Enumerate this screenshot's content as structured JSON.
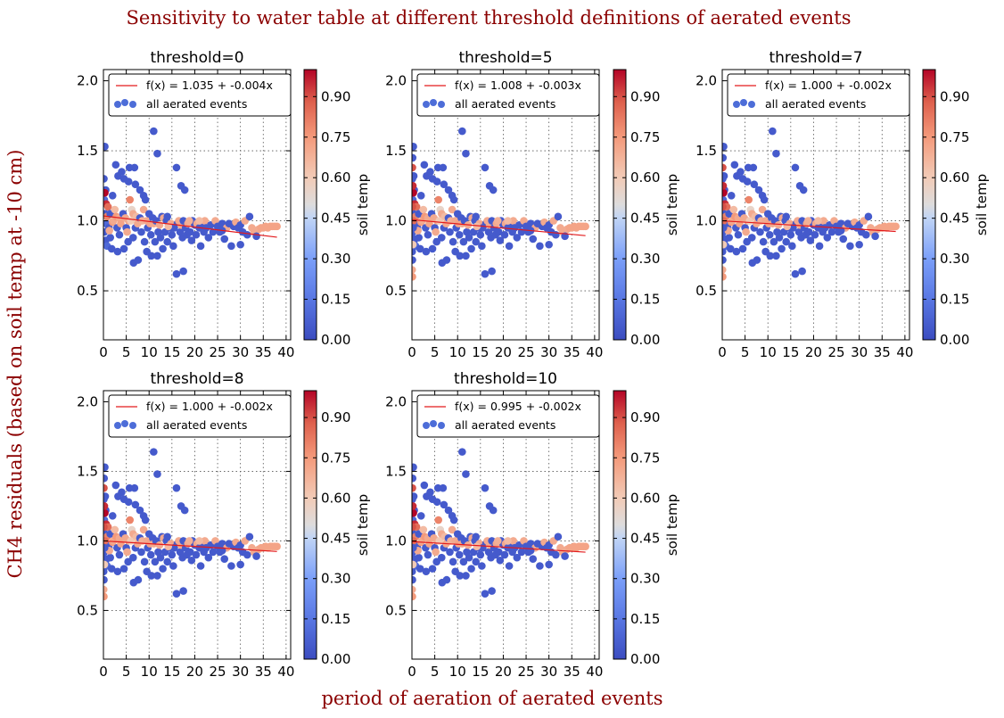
{
  "figure": {
    "suptitle": "Sensitivity to water table at different threshold definitions of aerated events",
    "xlabel": "period of aeration of aerated events",
    "ylabel": "CH4 residuals (based on soil temp at -10 cm)"
  },
  "colors": {
    "title": "#8b0000",
    "fit_line": "#e31a1c",
    "cold": "#3b4cc0",
    "warm": "#b40426"
  },
  "chart_data": [
    {
      "type": "scatter",
      "title": "threshold=0",
      "xlim": [
        0,
        41
      ],
      "ylim": [
        0.15,
        2.08
      ],
      "xticks": [
        0,
        5,
        10,
        15,
        20,
        25,
        30,
        35,
        40
      ],
      "yticks": [
        0.5,
        1.0,
        1.5,
        2.0
      ],
      "fit": {
        "label": "f(x) = 1.035 + -0.004x",
        "intercept": 1.035,
        "slope": -0.004,
        "x_range": [
          0,
          38
        ]
      },
      "scatter_label": "all aerated events",
      "colorbar": {
        "label": "soil temp",
        "ticks": [
          "0.00",
          "0.15",
          "0.30",
          "0.45",
          "0.60",
          "0.75",
          "0.90"
        ]
      },
      "grid": true,
      "legend": "top"
    },
    {
      "type": "scatter",
      "title": "threshold=5",
      "xlim": [
        0,
        41
      ],
      "ylim": [
        0.15,
        2.08
      ],
      "xticks": [
        0,
        5,
        10,
        15,
        20,
        25,
        30,
        35,
        40
      ],
      "yticks": [
        0.5,
        1.0,
        1.5,
        2.0
      ],
      "fit": {
        "label": "f(x) = 1.008 + -0.003x",
        "intercept": 1.008,
        "slope": -0.003,
        "x_range": [
          0,
          38
        ]
      },
      "scatter_label": "all aerated events",
      "colorbar": {
        "label": "soil temp",
        "ticks": [
          "0.00",
          "0.15",
          "0.30",
          "0.45",
          "0.60",
          "0.75",
          "0.90"
        ]
      },
      "grid": true,
      "legend": "top"
    },
    {
      "type": "scatter",
      "title": "threshold=7",
      "xlim": [
        0,
        41
      ],
      "ylim": [
        0.15,
        2.08
      ],
      "xticks": [
        0,
        5,
        10,
        15,
        20,
        25,
        30,
        35,
        40
      ],
      "yticks": [
        0.5,
        1.0,
        1.5,
        2.0
      ],
      "fit": {
        "label": "f(x) = 1.000 + -0.002x",
        "intercept": 1.0,
        "slope": -0.002,
        "x_range": [
          0,
          38
        ]
      },
      "scatter_label": "all aerated events",
      "colorbar": {
        "label": "soil temp",
        "ticks": [
          "0.00",
          "0.15",
          "0.30",
          "0.45",
          "0.60",
          "0.75",
          "0.90"
        ]
      },
      "grid": true,
      "legend": "top"
    },
    {
      "type": "scatter",
      "title": "threshold=8",
      "xlim": [
        0,
        41
      ],
      "ylim": [
        0.15,
        2.08
      ],
      "xticks": [
        0,
        5,
        10,
        15,
        20,
        25,
        30,
        35,
        40
      ],
      "yticks": [
        0.5,
        1.0,
        1.5,
        2.0
      ],
      "fit": {
        "label": "f(x) = 1.000 + -0.002x",
        "intercept": 1.0,
        "slope": -0.002,
        "x_range": [
          0,
          38
        ]
      },
      "scatter_label": "all aerated events",
      "colorbar": {
        "label": "soil temp",
        "ticks": [
          "0.00",
          "0.15",
          "0.30",
          "0.45",
          "0.60",
          "0.75",
          "0.90"
        ]
      },
      "grid": true,
      "legend": "top"
    },
    {
      "type": "scatter",
      "title": "threshold=10",
      "xlim": [
        0,
        41
      ],
      "ylim": [
        0.15,
        2.08
      ],
      "xticks": [
        0,
        5,
        10,
        15,
        20,
        25,
        30,
        35,
        40
      ],
      "yticks": [
        0.5,
        1.0,
        1.5,
        2.0
      ],
      "fit": {
        "label": "f(x) = 0.995 + -0.002x",
        "intercept": 0.995,
        "slope": -0.002,
        "x_range": [
          0,
          38
        ]
      },
      "scatter_label": "all aerated events",
      "colorbar": {
        "label": "soil temp",
        "ticks": [
          "0.00",
          "0.15",
          "0.30",
          "0.45",
          "0.60",
          "0.75",
          "0.90"
        ]
      },
      "grid": true,
      "legend": "top"
    }
  ],
  "scatter_points": {
    "base": [
      [
        0.1,
        1.3,
        0.05
      ],
      [
        0.3,
        1.53,
        0.05
      ],
      [
        0.5,
        1.22,
        0.05
      ],
      [
        0.2,
        1.15,
        0.1
      ],
      [
        0.4,
        1.05,
        0.05
      ],
      [
        0.6,
        0.98,
        0.1
      ],
      [
        0.2,
        0.92,
        0.05
      ],
      [
        0.5,
        0.86,
        0.05
      ],
      [
        0.8,
        0.82,
        0.1
      ],
      [
        0.3,
        1.2,
        1.0
      ],
      [
        0.6,
        1.12,
        0.95
      ],
      [
        1.0,
        1.1,
        0.85
      ],
      [
        0.8,
        1.03,
        0.8
      ],
      [
        1.2,
        0.95,
        0.05
      ],
      [
        1.5,
        0.88,
        0.05
      ],
      [
        1.8,
        0.8,
        0.05
      ],
      [
        1.5,
        1.05,
        0.05
      ],
      [
        2.0,
        1.18,
        0.05
      ],
      [
        2.0,
        0.99,
        0.75
      ],
      [
        2.2,
        1.0,
        0.7
      ],
      [
        1.3,
        0.93,
        0.7
      ],
      [
        2.5,
        1.08,
        0.65
      ],
      [
        2.8,
        1.03,
        0.75
      ],
      [
        3.0,
        0.95,
        0.05
      ],
      [
        3.1,
        0.78,
        0.05
      ],
      [
        3.5,
        0.9,
        0.05
      ],
      [
        3.5,
        1.02,
        0.7
      ],
      [
        3.8,
        0.98,
        0.72
      ],
      [
        2.7,
        1.4,
        0.05
      ],
      [
        3.2,
        1.32,
        0.05
      ],
      [
        4.0,
        1.35,
        0.05
      ],
      [
        4.5,
        1.3,
        0.05
      ],
      [
        4.3,
        1.05,
        0.05
      ],
      [
        4.8,
        1.02,
        0.7
      ],
      [
        4.5,
        0.8,
        0.05
      ],
      [
        5.0,
        0.95,
        0.05
      ],
      [
        5.2,
        0.92,
        0.7
      ],
      [
        5.5,
        1.0,
        0.7
      ],
      [
        5.8,
        1.15,
        0.8
      ],
      [
        5.4,
        0.85,
        0.05
      ],
      [
        5.5,
        1.28,
        0.05
      ],
      [
        5.7,
        1.38,
        0.05
      ],
      [
        6.0,
        1.0,
        0.6
      ],
      [
        6.2,
        1.08,
        0.55
      ],
      [
        6.5,
        1.05,
        0.7
      ],
      [
        6.5,
        0.88,
        0.05
      ],
      [
        6.6,
        0.7,
        0.05
      ],
      [
        6.8,
        1.38,
        0.05
      ],
      [
        7.0,
        1.26,
        0.05
      ],
      [
        7.0,
        0.95,
        0.05
      ],
      [
        7.2,
        1.03,
        0.65
      ],
      [
        7.5,
        0.98,
        0.7
      ],
      [
        7.6,
        0.72,
        0.05
      ],
      [
        8.0,
        1.22,
        0.05
      ],
      [
        8.0,
        1.02,
        0.05
      ],
      [
        8.3,
        0.92,
        0.05
      ],
      [
        8.5,
        1.0,
        0.68
      ],
      [
        8.8,
        1.18,
        0.05
      ],
      [
        8.8,
        1.08,
        0.7
      ],
      [
        9.0,
        0.85,
        0.05
      ],
      [
        9.2,
        1.15,
        0.05
      ],
      [
        9.5,
        1.0,
        0.7
      ],
      [
        9.7,
        0.95,
        0.05
      ],
      [
        9.5,
        0.78,
        0.05
      ],
      [
        10.0,
        1.05,
        0.05
      ],
      [
        10.2,
        0.98,
        0.72
      ],
      [
        10.4,
        0.9,
        0.05
      ],
      [
        10.5,
        0.75,
        0.05
      ],
      [
        10.8,
        1.02,
        0.05
      ],
      [
        11.0,
        1.64,
        0.05
      ],
      [
        11.0,
        0.98,
        0.7
      ],
      [
        11.3,
        0.85,
        0.05
      ],
      [
        11.5,
        1.0,
        0.05
      ],
      [
        11.8,
        1.48,
        0.05
      ],
      [
        11.8,
        0.75,
        0.05
      ],
      [
        12.0,
        0.92,
        0.05
      ],
      [
        12.3,
        0.97,
        0.7
      ],
      [
        12.5,
        0.88,
        0.05
      ],
      [
        12.8,
        1.03,
        0.05
      ],
      [
        13.0,
        0.8,
        0.05
      ],
      [
        13.2,
        1.02,
        0.7
      ],
      [
        13.5,
        0.92,
        0.05
      ],
      [
        13.8,
        1.0,
        0.05
      ],
      [
        14.0,
        0.85,
        0.05
      ],
      [
        14.0,
        1.03,
        0.05
      ],
      [
        14.5,
        0.95,
        0.05
      ],
      [
        14.8,
        0.98,
        0.7
      ],
      [
        15.0,
        0.9,
        0.05
      ],
      [
        15.3,
        0.82,
        0.05
      ],
      [
        15.5,
        0.95,
        0.05
      ],
      [
        16.0,
        1.38,
        0.05
      ],
      [
        16.0,
        0.62,
        0.05
      ],
      [
        16.2,
        0.98,
        0.05
      ],
      [
        16.5,
        1.0,
        0.7
      ],
      [
        16.8,
        0.92,
        0.05
      ],
      [
        17.0,
        1.25,
        0.05
      ],
      [
        17.0,
        0.97,
        0.7
      ],
      [
        17.3,
        0.88,
        0.05
      ],
      [
        17.5,
        1.0,
        0.05
      ],
      [
        17.8,
        1.22,
        0.05
      ],
      [
        17.5,
        0.64,
        0.05
      ],
      [
        18.0,
        0.95,
        0.05
      ],
      [
        18.3,
        0.9,
        0.05
      ],
      [
        18.5,
        0.98,
        0.7
      ],
      [
        19.0,
        0.92,
        0.05
      ],
      [
        19.3,
        0.86,
        0.05
      ],
      [
        19.5,
        1.0,
        0.05
      ],
      [
        20.0,
        0.97,
        0.05
      ],
      [
        20.3,
        0.9,
        0.05
      ],
      [
        20.5,
        0.98,
        0.7
      ],
      [
        21.0,
        0.95,
        0.05
      ],
      [
        21.3,
        0.82,
        0.05
      ],
      [
        21.5,
        0.98,
        0.05
      ],
      [
        22.0,
        0.92,
        0.05
      ],
      [
        22.2,
        1.0,
        0.7
      ],
      [
        22.5,
        0.95,
        0.05
      ],
      [
        23.0,
        0.88,
        0.05
      ],
      [
        23.5,
        0.97,
        0.05
      ],
      [
        24.0,
        0.92,
        0.05
      ],
      [
        24.5,
        1.0,
        0.7
      ],
      [
        25.0,
        0.96,
        0.05
      ],
      [
        25.5,
        0.92,
        0.05
      ],
      [
        26.0,
        0.98,
        0.05
      ],
      [
        26.5,
        0.87,
        0.05
      ],
      [
        27.0,
        0.95,
        0.7
      ],
      [
        27.5,
        0.98,
        0.05
      ],
      [
        28.0,
        0.82,
        0.05
      ],
      [
        28.5,
        0.96,
        0.05
      ],
      [
        29.0,
        0.99,
        0.7
      ],
      [
        29.5,
        0.95,
        0.05
      ],
      [
        30.0,
        0.97,
        0.05
      ],
      [
        30.5,
        0.92,
        0.05
      ],
      [
        31.0,
        1.0,
        0.7
      ],
      [
        31.5,
        0.9,
        0.05
      ],
      [
        32.0,
        1.03,
        0.05
      ],
      [
        32.5,
        0.95,
        0.7
      ],
      [
        33.0,
        0.92,
        0.7
      ],
      [
        33.5,
        0.93,
        0.7
      ],
      [
        34.0,
        0.94,
        0.7
      ],
      [
        34.5,
        0.95,
        0.72
      ],
      [
        35.0,
        0.95,
        0.72
      ],
      [
        35.5,
        0.96,
        0.72
      ],
      [
        36.0,
        0.95,
        0.72
      ],
      [
        36.5,
        0.96,
        0.72
      ],
      [
        37.0,
        0.96,
        0.72
      ],
      [
        37.5,
        0.96,
        0.72
      ],
      [
        38.0,
        0.96,
        0.72
      ],
      [
        33.5,
        0.89,
        0.05
      ],
      [
        30.0,
        0.83,
        0.05
      ],
      [
        26.0,
        0.93,
        0.05
      ],
      [
        21.0,
        1.0,
        0.65
      ],
      [
        18.8,
        1.0,
        0.68
      ],
      [
        14.2,
        0.96,
        0.65
      ]
    ],
    "extra_left": [
      [
        0.05,
        0.78,
        0.05
      ],
      [
        0.1,
        0.72,
        0.05
      ],
      [
        0.05,
        0.65,
        0.7
      ],
      [
        0.1,
        0.6,
        0.75
      ],
      [
        0.15,
        1.45,
        0.05
      ],
      [
        0.1,
        1.38,
        0.9
      ],
      [
        0.2,
        1.25,
        0.95
      ],
      [
        0.3,
        1.0,
        0.85
      ],
      [
        0.05,
        0.88,
        0.05
      ],
      [
        0.2,
        0.83,
        0.6
      ],
      [
        0.1,
        1.1,
        0.9
      ],
      [
        0.25,
        0.95,
        0.05
      ],
      [
        0.4,
        1.32,
        0.05
      ]
    ]
  }
}
